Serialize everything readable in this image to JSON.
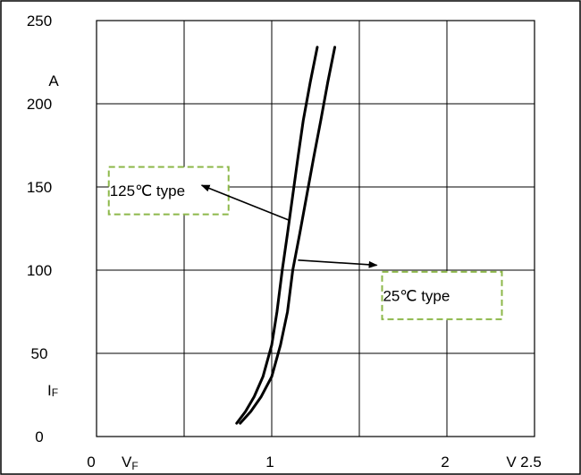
{
  "chart_data": {
    "type": "line",
    "x_ticks": [
      {
        "value": 0,
        "label": "0"
      },
      {
        "value": 1,
        "label": "1"
      },
      {
        "value": 2,
        "label": "2"
      },
      {
        "value": 2.5,
        "label": "2.5"
      }
    ],
    "y_ticks": [
      {
        "value": 0,
        "label": "0"
      },
      {
        "value": 50,
        "label": "50"
      },
      {
        "value": 100,
        "label": "100"
      },
      {
        "value": 150,
        "label": "150"
      },
      {
        "value": 200,
        "label": "200"
      },
      {
        "value": 250,
        "label": "250"
      }
    ],
    "xlim": [
      0,
      2.5
    ],
    "ylim": [
      0,
      250
    ],
    "x_grid": [
      0,
      0.5,
      1.0,
      1.5,
      2.0,
      2.5
    ],
    "y_grid": [
      0,
      50,
      100,
      150,
      200,
      250
    ],
    "grid": true,
    "x_axis_symbol": {
      "main": "V",
      "sub": "F"
    },
    "x_axis_unit": "V",
    "y_axis_symbol": {
      "main": "I",
      "sub": "F"
    },
    "y_axis_unit": "A",
    "series": [
      {
        "name": "125℃ type",
        "x": [
          0.8,
          0.85,
          0.9,
          0.95,
          1.0,
          1.03,
          1.06,
          1.09,
          1.12,
          1.15,
          1.18,
          1.22,
          1.26
        ],
        "y": [
          8,
          15,
          24,
          36,
          55,
          75,
          100,
          122,
          145,
          168,
          190,
          213,
          234
        ]
      },
      {
        "name": "25℃ type",
        "x": [
          0.82,
          0.88,
          0.94,
          1.0,
          1.05,
          1.09,
          1.12,
          1.16,
          1.2,
          1.24,
          1.28,
          1.32,
          1.36
        ],
        "y": [
          8,
          15,
          24,
          36,
          55,
          75,
          100,
          122,
          145,
          168,
          190,
          213,
          234
        ]
      }
    ],
    "annotations": [
      {
        "series": 0,
        "text": "125℃  type",
        "box_x": 0.07,
        "box_y": 162,
        "arrow_from": [
          1.1,
          130
        ],
        "arrow_to": [
          0.6,
          151
        ]
      },
      {
        "series": 1,
        "text": "25℃  type",
        "box_x": 1.63,
        "box_y": 99,
        "arrow_from": [
          1.15,
          106
        ],
        "arrow_to": [
          1.6,
          103
        ]
      }
    ]
  }
}
